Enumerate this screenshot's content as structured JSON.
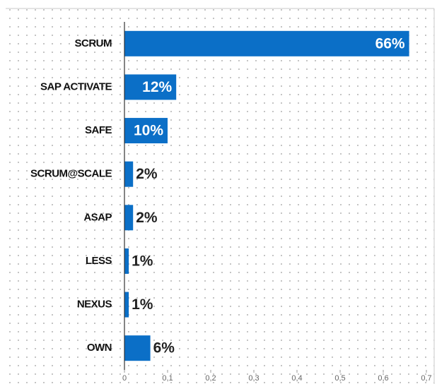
{
  "chart_data": {
    "type": "hbar",
    "categories": [
      "SCRUM",
      "SAP ACTIVATE",
      "SAFE",
      "SCRUM@SCALE",
      "ASAP",
      "LESS",
      "NEXUS",
      "OWN"
    ],
    "values": [
      0.66,
      0.12,
      0.1,
      0.02,
      0.02,
      0.01,
      0.01,
      0.06
    ],
    "value_labels": [
      "66%",
      "12%",
      "10%",
      "2%",
      "2%",
      "1%",
      "1%",
      "6%"
    ],
    "color": "#0b6fc7",
    "xlim": [
      0,
      0.7
    ],
    "xticks": [
      0,
      {
        "value": 0.1,
        "label": "0,1"
      },
      {
        "value": 0.2,
        "label": "0,2"
      },
      {
        "value": 0.3,
        "label": "0,3"
      },
      {
        "value": 0.4,
        "label": "0,4"
      },
      {
        "value": 0.5,
        "label": "0,5"
      },
      {
        "value": 0.6,
        "label": "0,6"
      },
      {
        "value": 0.7,
        "label": "0,7"
      }
    ]
  }
}
